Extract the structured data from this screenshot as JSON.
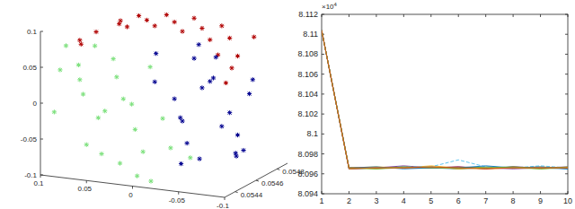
{
  "chart_data": [
    {
      "type": "scatter3d",
      "xlim": [
        0.1,
        -0.1
      ],
      "ylim": [
        0.0543,
        0.0549
      ],
      "zlim": [
        -0.1,
        0.1
      ],
      "xticks": [
        0.1,
        0.05,
        0,
        -0.05,
        -0.1
      ],
      "yticks": [
        0.0544,
        0.0546,
        0.0548
      ],
      "zticks": [
        -0.1,
        -0.05,
        0,
        0.05,
        0.1
      ],
      "grid": false,
      "series": [
        {
          "color": "#b00000",
          "marker": "star",
          "x": [
            0.09,
            0.085,
            0.07,
            0.06,
            0.05,
            0.04,
            0.03,
            0.02,
            0.01,
            0,
            -0.01,
            -0.02,
            -0.03,
            -0.04,
            -0.05,
            -0.06,
            -0.07,
            -0.08,
            -0.085,
            -0.09,
            0.08,
            -0.075
          ],
          "y": [
            0.0546,
            0.0547,
            0.0548,
            0.0547,
            0.0548,
            0.0546,
            0.0547,
            0.0548,
            0.0546,
            0.0547,
            0.0548,
            0.0546,
            0.0547,
            0.0548,
            0.0546,
            0.0547,
            0.0545,
            0.0546,
            0.0545,
            0.0544,
            0.0545,
            0.0548
          ],
          "z": [
            0.06,
            0.07,
            0.08,
            0.085,
            0.09,
            0.092,
            0.095,
            0.096,
            0.098,
            0.097,
            0.096,
            0.095,
            0.093,
            0.09,
            0.088,
            0.084,
            0.078,
            0.07,
            0.062,
            0.05,
            0.075,
            0.08
          ]
        },
        {
          "color": "#7be07b",
          "marker": "star",
          "x": [
            0.09,
            0.08,
            0.085,
            0.07,
            0.06,
            0.065,
            0.05,
            0.04,
            0.045,
            0.03,
            0.02,
            0.025,
            0.01,
            0,
            -0.01,
            -0.02,
            -0.03,
            -0.04,
            0.075,
            0.055,
            0.035,
            0.015,
            -0.005,
            0.095
          ],
          "y": [
            0.0544,
            0.0545,
            0.0543,
            0.0544,
            0.0545,
            0.0544,
            0.0543,
            0.0545,
            0.0544,
            0.0543,
            0.0545,
            0.0544,
            0.0543,
            0.0544,
            0.0545,
            0.0543,
            0.0544,
            0.0545,
            0.0546,
            0.0546,
            0.0546,
            0.0546,
            0.0543,
            0.0545
          ],
          "z": [
            0.04,
            0.02,
            -0.01,
            0.05,
            -0.03,
            0.01,
            -0.05,
            0.03,
            -0.07,
            0,
            -0.04,
            -0.08,
            0.02,
            -0.06,
            -0.02,
            -0.09,
            -0.05,
            -0.07,
            0.06,
            0.045,
            -0.015,
            0.04,
            -0.085,
            0.065
          ]
        },
        {
          "color": "#00008f",
          "marker": "star",
          "x": [
            0.02,
            0.01,
            0,
            -0.01,
            -0.02,
            -0.03,
            -0.04,
            -0.05,
            -0.06,
            -0.07,
            -0.08,
            -0.085,
            -0.09,
            -0.05,
            -0.03,
            -0.065,
            -0.015,
            0.005,
            -0.045,
            -0.075,
            -0.025,
            -0.055
          ],
          "y": [
            0.0547,
            0.0546,
            0.0547,
            0.0548,
            0.0546,
            0.0547,
            0.0548,
            0.0546,
            0.0547,
            0.0548,
            0.0546,
            0.0547,
            0.0545,
            0.0545,
            0.0545,
            0.0545,
            0.0548,
            0.0548,
            0.0547,
            0.0547,
            0.0546,
            0.0548
          ],
          "z": [
            0.05,
            0.02,
            -0.01,
            0.04,
            -0.03,
            0.01,
            -0.05,
            0.03,
            -0.02,
            0,
            -0.04,
            0.03,
            -0.06,
            -0.07,
            -0.08,
            0.045,
            0.06,
            -0.045,
            0.055,
            -0.07,
            -0.06,
            -0.085
          ]
        }
      ]
    },
    {
      "type": "line",
      "y_scale_label": {
        "base": "×10",
        "exponent": 4
      },
      "x": [
        1,
        2,
        3,
        4,
        5,
        6,
        7,
        8,
        9,
        10
      ],
      "xlim": [
        1,
        10
      ],
      "xticks": [
        1,
        2,
        3,
        4,
        5,
        6,
        7,
        8,
        9,
        10
      ],
      "ylim": [
        8.094,
        8.112
      ],
      "yticks": [
        8.094,
        8.096,
        8.098,
        8.1,
        8.102,
        8.104,
        8.106,
        8.108,
        8.11,
        8.112
      ],
      "grid": false,
      "series": [
        {
          "color": "#0072bd",
          "line_style": "solid",
          "values": [
            8.1104,
            8.0965,
            8.0966,
            8.0967,
            8.0966,
            8.0965,
            8.0966,
            8.0967,
            8.0966,
            8.0965
          ]
        },
        {
          "color": "#edb120",
          "line_style": "solid",
          "values": [
            8.1104,
            8.0966,
            8.0967,
            8.0966,
            8.0968,
            8.0966,
            8.0965,
            8.0966,
            8.0967,
            8.0966
          ]
        },
        {
          "color": "#7e2f8e",
          "line_style": "solid",
          "values": [
            8.1104,
            8.0965,
            8.0966,
            8.0968,
            8.0966,
            8.0967,
            8.0966,
            8.0965,
            8.0966,
            8.0967
          ]
        },
        {
          "color": "#77ac30",
          "line_style": "solid",
          "values": [
            8.1104,
            8.0966,
            8.0965,
            8.0966,
            8.0967,
            8.0965,
            8.0967,
            8.0966,
            8.0965,
            8.0966
          ]
        },
        {
          "color": "#4dbeee",
          "line_style": "dashed",
          "values": [
            8.1104,
            8.0966,
            8.0966,
            8.0967,
            8.0967,
            8.0974,
            8.0967,
            8.0966,
            8.0968,
            8.0966
          ]
        },
        {
          "color": "#a2142f",
          "line_style": "solid",
          "values": [
            8.1104,
            8.0965,
            8.0966,
            8.0966,
            8.0966,
            8.0967,
            8.0965,
            8.0967,
            8.0966,
            8.0966
          ]
        },
        {
          "color": "#0072bd",
          "line_style": "solid",
          "values": [
            8.1104,
            8.0966,
            8.0967,
            8.0965,
            8.0966,
            8.0966,
            8.0968,
            8.0966,
            8.0967,
            8.0965
          ]
        },
        {
          "color": "#edb120",
          "line_style": "solid",
          "values": [
            8.1104,
            8.0965,
            8.0966,
            8.0966,
            8.0967,
            8.0965,
            8.0966,
            8.0966,
            8.0966,
            8.0966
          ]
        },
        {
          "color": "#77ac30",
          "line_style": "solid",
          "values": [
            8.1104,
            8.0966,
            8.0965,
            8.0967,
            8.0966,
            8.0966,
            8.0966,
            8.0967,
            8.0965,
            8.0967
          ]
        },
        {
          "color": "#d95319",
          "line_style": "solid",
          "values": [
            8.1104,
            8.0966,
            8.0966,
            8.0966,
            8.0967,
            8.0966,
            8.0965,
            8.0966,
            8.0966,
            8.0966
          ]
        }
      ]
    }
  ]
}
